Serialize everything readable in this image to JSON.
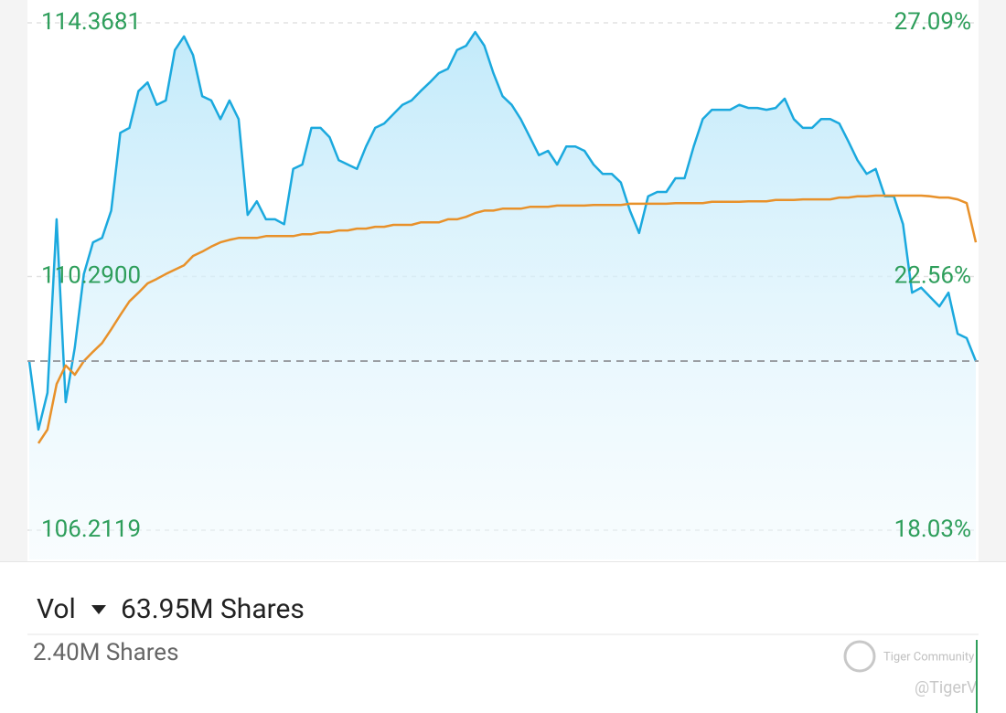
{
  "chart_data": {
    "type": "line",
    "ylim": [
      106.2119,
      114.3681
    ],
    "yticks": [
      114.3681,
      {
        "value": 110.29,
        "label": "110.2900"
      },
      106.2119
    ],
    "y2lim": [
      18.03,
      27.09
    ],
    "y2ticks": [
      {
        "value": 27.09,
        "label": "27.09%"
      },
      {
        "value": 22.56,
        "label": "22.56%"
      },
      {
        "value": 18.03,
        "label": "18.03%"
      }
    ],
    "grid": true,
    "label_color": "#2e9e5b",
    "reference_line": 108.93,
    "series": [
      {
        "color": "#1ba9de",
        "values": [
          108.93,
          107.83,
          108.42,
          111.21,
          108.27,
          109.15,
          110.33,
          110.84,
          110.91,
          111.35,
          112.6,
          112.68,
          113.27,
          113.41,
          113.05,
          113.12,
          113.93,
          114.15,
          113.85,
          113.19,
          113.12,
          112.82,
          113.12,
          112.82,
          111.28,
          111.5,
          111.21,
          111.21,
          111.13,
          112.02,
          112.09,
          112.68,
          112.68,
          112.53,
          112.16,
          112.09,
          112.02,
          112.38,
          112.68,
          112.75,
          112.9,
          113.05,
          113.12,
          113.27,
          113.41,
          113.56,
          113.63,
          113.93,
          114.0,
          114.22,
          114.0,
          113.56,
          113.19,
          113.05,
          112.82,
          112.53,
          112.24,
          112.31,
          112.09,
          112.38,
          112.38,
          112.31,
          112.09,
          111.94,
          111.94,
          111.8,
          111.35,
          110.99,
          111.58,
          111.65,
          111.65,
          111.87,
          111.87,
          112.38,
          112.82,
          112.97,
          112.97,
          112.97,
          113.05,
          113.0,
          113.0,
          112.97,
          113.0,
          113.15,
          112.82,
          112.68,
          112.68,
          112.82,
          112.82,
          112.75,
          112.46,
          112.16,
          111.94,
          112.02,
          111.58,
          111.58,
          111.13,
          110.03,
          110.11,
          109.96,
          109.81,
          110.03,
          109.37,
          109.3,
          108.93
        ]
      },
      {
        "color": "#e8912a",
        "values": [
          null,
          107.61,
          107.83,
          108.56,
          108.86,
          108.71,
          108.93,
          109.08,
          109.22,
          109.44,
          109.67,
          109.89,
          110.03,
          110.18,
          110.25,
          110.33,
          110.4,
          110.47,
          110.62,
          110.69,
          110.77,
          110.84,
          110.88,
          110.91,
          110.91,
          110.91,
          110.94,
          110.94,
          110.94,
          110.94,
          110.97,
          110.97,
          111.0,
          111.0,
          111.03,
          111.03,
          111.06,
          111.06,
          111.09,
          111.09,
          111.12,
          111.12,
          111.12,
          111.16,
          111.16,
          111.16,
          111.21,
          111.21,
          111.25,
          111.31,
          111.35,
          111.35,
          111.38,
          111.38,
          111.38,
          111.41,
          111.41,
          111.41,
          111.43,
          111.43,
          111.43,
          111.43,
          111.44,
          111.44,
          111.44,
          111.44,
          111.46,
          111.46,
          111.46,
          111.46,
          111.46,
          111.47,
          111.47,
          111.47,
          111.47,
          111.49,
          111.49,
          111.49,
          111.49,
          111.5,
          111.5,
          111.5,
          111.52,
          111.52,
          111.52,
          111.53,
          111.53,
          111.53,
          111.53,
          111.56,
          111.56,
          111.58,
          111.58,
          111.59,
          111.59,
          111.59,
          111.59,
          111.59,
          111.59,
          111.58,
          111.56,
          111.56,
          111.53,
          111.47,
          110.84
        ]
      }
    ]
  },
  "volume_panel": {
    "label": "Vol",
    "total": "63.95M Shares",
    "scale_label": "2.40M Shares"
  },
  "watermark": {
    "brand": "Tiger Community",
    "handle": "@TigerV"
  }
}
